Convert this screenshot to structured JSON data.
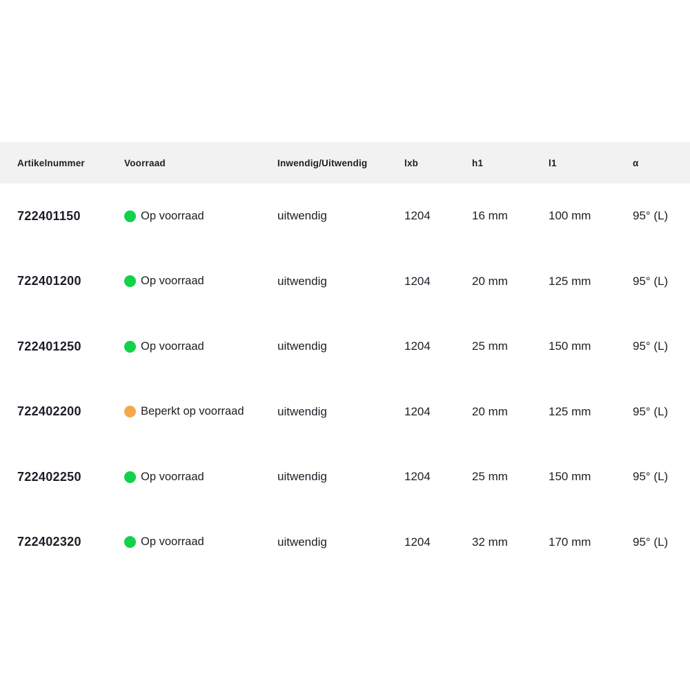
{
  "colors": {
    "header_bg": "#f2f2f2",
    "text": "#1d1d26",
    "in_stock_dot": "#12d24a",
    "limited_stock_dot": "#f5a74e"
  },
  "table": {
    "columns": [
      {
        "label": "Artikelnummer"
      },
      {
        "label": "Voorraad"
      },
      {
        "label": "Inwendig/Uitwendig"
      },
      {
        "label": "lxb"
      },
      {
        "label": "h1"
      },
      {
        "label": "l1"
      },
      {
        "label": "α"
      }
    ],
    "rows": [
      {
        "artikelnummer": "722401150",
        "voorraad": "Op voorraad",
        "voorraad_status": "op-voorraad",
        "dot_color": "#12d24a",
        "inwendig_uitwendig": "uitwendig",
        "lxb": "1204",
        "h1": "16 mm",
        "l1": "100 mm",
        "alpha": "95° (L)"
      },
      {
        "artikelnummer": "722401200",
        "voorraad": "Op voorraad",
        "voorraad_status": "op-voorraad",
        "dot_color": "#12d24a",
        "inwendig_uitwendig": "uitwendig",
        "lxb": "1204",
        "h1": "20 mm",
        "l1": "125 mm",
        "alpha": "95° (L)"
      },
      {
        "artikelnummer": "722401250",
        "voorraad": "Op voorraad",
        "voorraad_status": "op-voorraad",
        "dot_color": "#12d24a",
        "inwendig_uitwendig": "uitwendig",
        "lxb": "1204",
        "h1": "25 mm",
        "l1": "150 mm",
        "alpha": "95° (L)"
      },
      {
        "artikelnummer": "722402200",
        "voorraad": "Beperkt op voorraad",
        "voorraad_status": "beperkt-op-voorraad",
        "dot_color": "#f5a74e",
        "inwendig_uitwendig": "uitwendig",
        "lxb": "1204",
        "h1": "20 mm",
        "l1": "125 mm",
        "alpha": "95° (L)"
      },
      {
        "artikelnummer": "722402250",
        "voorraad": "Op voorraad",
        "voorraad_status": "op-voorraad",
        "dot_color": "#12d24a",
        "inwendig_uitwendig": "uitwendig",
        "lxb": "1204",
        "h1": "25 mm",
        "l1": "150 mm",
        "alpha": "95° (L)"
      },
      {
        "artikelnummer": "722402320",
        "voorraad": "Op voorraad",
        "voorraad_status": "op-voorraad",
        "dot_color": "#12d24a",
        "inwendig_uitwendig": "uitwendig",
        "lxb": "1204",
        "h1": "32 mm",
        "l1": "170 mm",
        "alpha": "95° (L)"
      }
    ]
  }
}
